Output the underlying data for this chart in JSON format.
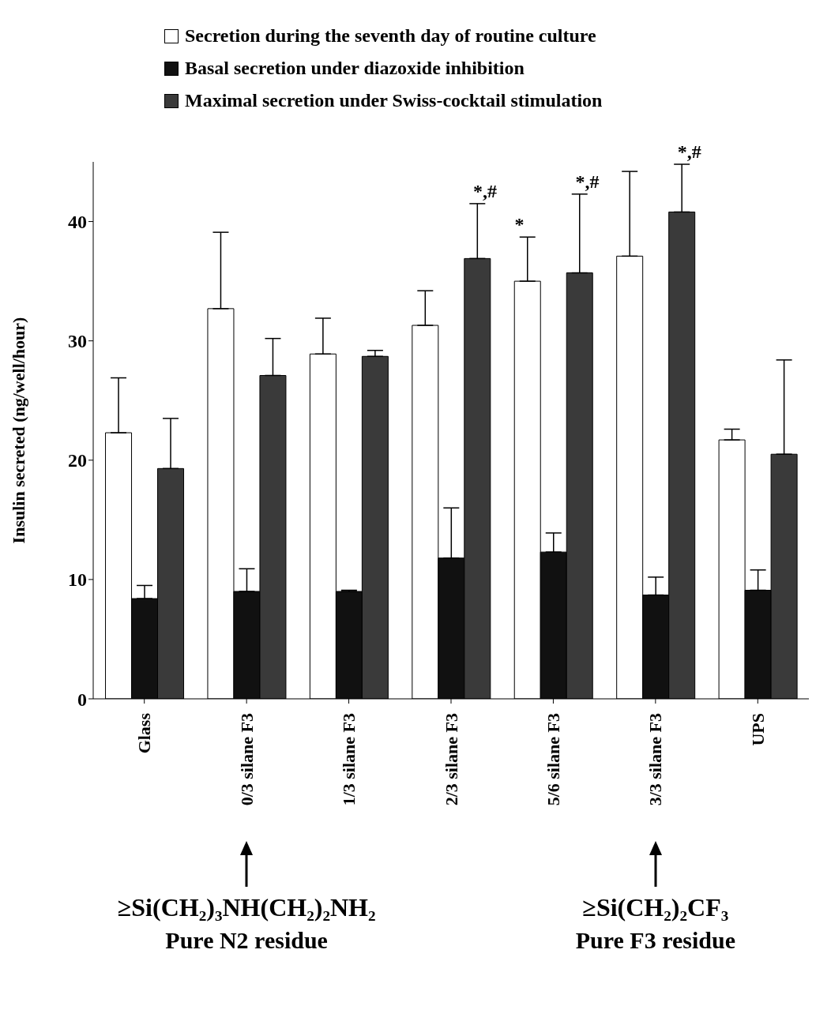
{
  "chart_data": {
    "type": "bar",
    "ylabel": "Insulin secreted (ng/well/hour)",
    "categories": [
      "Glass",
      "0/3 silane F3",
      "1/3 silane F3",
      "2/3 silane F3",
      "5/6 silane F3",
      "3/3 silane F3",
      "UPS"
    ],
    "series": [
      {
        "name": "Secretion during the seventh day of routine culture",
        "color": "#ffffff",
        "values": [
          22.3,
          32.7,
          28.9,
          31.3,
          35.0,
          37.1,
          21.7
        ],
        "errors": [
          [
            22.3,
            26.9
          ],
          [
            32.7,
            39.1
          ],
          [
            28.9,
            31.9
          ],
          [
            31.3,
            34.2
          ],
          [
            35.0,
            38.7
          ],
          [
            37.1,
            44.2
          ],
          [
            21.7,
            22.6
          ]
        ]
      },
      {
        "name": "Basal secretion under diazoxide inhibition",
        "color": "#111111",
        "values": [
          8.4,
          9.0,
          9.0,
          11.8,
          12.3,
          8.7,
          9.1
        ],
        "errors": [
          [
            8.4,
            9.5
          ],
          [
            9.0,
            10.9
          ],
          [
            9.0,
            9.1
          ],
          [
            11.8,
            16.0
          ],
          [
            12.3,
            13.9
          ],
          [
            8.7,
            10.2
          ],
          [
            9.1,
            10.8
          ]
        ]
      },
      {
        "name": "Maximal secretion under Swiss-cocktail stimulation",
        "color": "#3a3a3a",
        "values": [
          19.3,
          27.1,
          28.7,
          36.9,
          35.7,
          40.8,
          20.5
        ],
        "errors": [
          [
            19.3,
            23.5
          ],
          [
            27.1,
            30.2
          ],
          [
            28.7,
            29.2
          ],
          [
            36.9,
            41.5
          ],
          [
            35.7,
            42.3
          ],
          [
            40.8,
            44.8
          ],
          [
            20.5,
            28.4
          ]
        ]
      }
    ],
    "ylim": [
      0,
      45
    ],
    "yticks": [
      0,
      10,
      20,
      30,
      40
    ],
    "grid": false,
    "legend": "top",
    "annotations": [
      "*,#",
      "*",
      "*,#",
      "*,#",
      "≥Si(CH₂)₃NH(CH₂)₂NH₂",
      "Pure N2 residue",
      "≥Si(CH₂)₂CF₃",
      "Pure F3 residue"
    ]
  }
}
